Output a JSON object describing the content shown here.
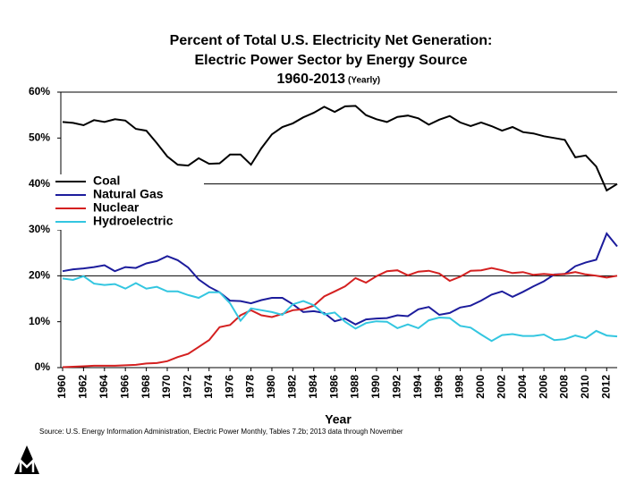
{
  "chart_data": {
    "type": "line",
    "title": "Percent of Total U.S. Electricity Net Generation:",
    "subtitle": "Electric Power Sector by Energy Source",
    "period": "1960-2013",
    "period_note": "(Yearly)",
    "x_label": "Year",
    "source": "Source: U.S. Energy Information Administration, Electric Power Monthly, Tables 7.2b; 2013 data through November",
    "x": [
      1960,
      1961,
      1962,
      1963,
      1964,
      1965,
      1966,
      1967,
      1968,
      1969,
      1970,
      1971,
      1972,
      1973,
      1974,
      1975,
      1976,
      1977,
      1978,
      1979,
      1980,
      1981,
      1982,
      1983,
      1984,
      1985,
      1986,
      1987,
      1988,
      1989,
      1990,
      1991,
      1992,
      1993,
      1994,
      1995,
      1996,
      1997,
      1998,
      1999,
      2000,
      2001,
      2002,
      2003,
      2004,
      2005,
      2006,
      2007,
      2008,
      2009,
      2010,
      2011,
      2012,
      2013
    ],
    "xlim": [
      1960,
      2013
    ],
    "xticks": [
      1960,
      1962,
      1964,
      1966,
      1968,
      1970,
      1972,
      1974,
      1976,
      1978,
      1980,
      1982,
      1984,
      1986,
      1988,
      1990,
      1992,
      1994,
      1996,
      1998,
      2000,
      2002,
      2004,
      2006,
      2008,
      2010,
      2012
    ],
    "ylim": [
      0,
      60
    ],
    "yticks": [
      {
        "value": 0,
        "label": "0%"
      },
      {
        "value": 10,
        "label": "10%"
      },
      {
        "value": 20,
        "label": "20%"
      },
      {
        "value": 30,
        "label": "30%"
      },
      {
        "value": 40,
        "label": "40%"
      },
      {
        "value": 50,
        "label": "50%"
      },
      {
        "value": 60,
        "label": "60%"
      }
    ],
    "grid": true,
    "legend": "upper left",
    "series": [
      {
        "name": "Coal",
        "color": "#000000",
        "values": [
          53.5,
          53.3,
          52.8,
          53.9,
          53.5,
          54.1,
          53.8,
          52.0,
          51.6,
          48.9,
          46.0,
          44.2,
          44.0,
          45.6,
          44.4,
          44.5,
          46.4,
          46.4,
          44.2,
          47.8,
          50.8,
          52.4,
          53.2,
          54.5,
          55.5,
          56.8,
          55.7,
          56.9,
          57.0,
          55.0,
          54.1,
          53.5,
          54.6,
          54.9,
          54.3,
          52.9,
          54.0,
          54.8,
          53.4,
          52.6,
          53.4,
          52.6,
          51.6,
          52.4,
          51.3,
          51.0,
          50.4,
          50.0,
          49.6,
          45.8,
          46.2,
          43.8,
          38.6,
          40.0
        ]
      },
      {
        "name": "Natural Gas",
        "color": "#1c1c9c",
        "values": [
          21.0,
          21.4,
          21.6,
          21.9,
          22.3,
          21.0,
          21.9,
          21.7,
          22.7,
          23.2,
          24.3,
          23.4,
          21.8,
          19.2,
          17.6,
          16.4,
          14.6,
          14.5,
          14.0,
          14.7,
          15.2,
          15.2,
          13.8,
          12.1,
          12.3,
          11.9,
          10.1,
          10.7,
          9.4,
          10.5,
          10.7,
          10.8,
          11.4,
          11.2,
          12.7,
          13.2,
          11.5,
          11.9,
          13.1,
          13.5,
          14.6,
          15.9,
          16.6,
          15.4,
          16.5,
          17.7,
          18.8,
          20.3,
          20.4,
          22.1,
          22.9,
          23.5,
          29.2,
          26.4
        ]
      },
      {
        "name": "Nuclear",
        "color": "#d42020",
        "values": [
          0.1,
          0.2,
          0.3,
          0.4,
          0.4,
          0.4,
          0.5,
          0.6,
          0.9,
          1.0,
          1.4,
          2.3,
          3.0,
          4.5,
          6.0,
          8.8,
          9.3,
          11.4,
          12.5,
          11.4,
          11.0,
          11.7,
          12.5,
          12.7,
          13.5,
          15.5,
          16.6,
          17.7,
          19.5,
          18.5,
          19.9,
          21.0,
          21.2,
          20.1,
          20.9,
          21.1,
          20.5,
          18.9,
          19.8,
          21.1,
          21.2,
          21.7,
          21.2,
          20.6,
          20.8,
          20.2,
          20.4,
          20.2,
          20.4,
          20.8,
          20.3,
          20.0,
          19.6,
          20.0
        ]
      },
      {
        "name": "Hydroelectric",
        "color": "#33c6e0",
        "values": [
          19.4,
          19.1,
          19.9,
          18.3,
          18.0,
          18.2,
          17.2,
          18.4,
          17.2,
          17.6,
          16.6,
          16.6,
          15.8,
          15.2,
          16.4,
          16.4,
          14.0,
          10.2,
          12.9,
          12.5,
          12.1,
          11.5,
          13.8,
          14.5,
          13.6,
          11.6,
          12.0,
          10.0,
          8.5,
          9.7,
          10.1,
          10.0,
          8.6,
          9.4,
          8.6,
          10.3,
          10.9,
          10.8,
          9.1,
          8.7,
          7.2,
          5.8,
          7.1,
          7.3,
          6.9,
          6.9,
          7.2,
          6.0,
          6.2,
          7.0,
          6.4,
          8.0,
          7.0,
          6.8
        ]
      }
    ]
  }
}
